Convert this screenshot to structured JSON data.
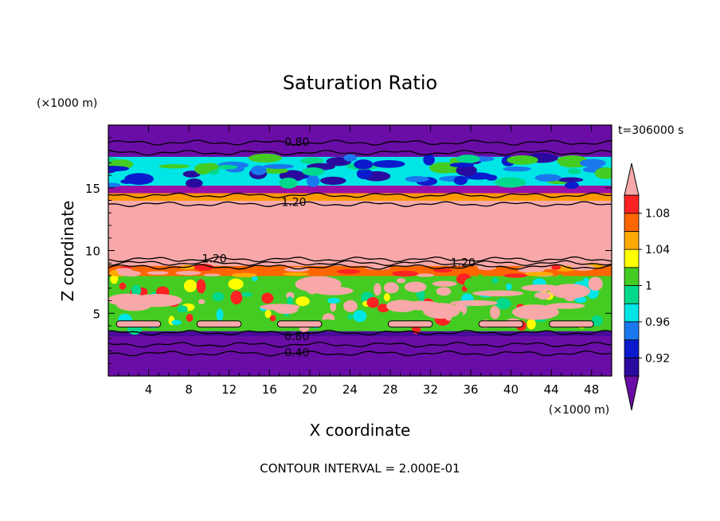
{
  "chart_data": {
    "type": "heatmap",
    "title": "Saturation Ratio",
    "xlabel": "X coordinate",
    "ylabel": "Z coordinate",
    "x_unit": "(×1000 m)",
    "y_unit": "(×1000 m)",
    "time_label": "t=306000 s",
    "footer": "CONTOUR INTERVAL = 2.000E-01",
    "xlim": [
      0,
      50
    ],
    "ylim": [
      0,
      20
    ],
    "x_ticks": [
      4,
      8,
      12,
      16,
      20,
      24,
      28,
      32,
      36,
      40,
      44,
      48
    ],
    "y_ticks": [
      5,
      10,
      15
    ],
    "contour_labels": [
      {
        "text": "0.80",
        "x": 17.5,
        "z": 18.6
      },
      {
        "text": "1.20",
        "x": 17.2,
        "z": 13.8
      },
      {
        "text": "1.20",
        "x": 9.3,
        "z": 9.3
      },
      {
        "text": "1.20",
        "x": 34.0,
        "z": 9.0
      },
      {
        "text": "0.80",
        "x": 17.5,
        "z": 3.1
      },
      {
        "text": "0.40",
        "x": 17.5,
        "z": 1.8
      }
    ],
    "colorbar": {
      "levels": [
        0.92,
        0.96,
        1.0,
        1.04,
        1.08
      ],
      "tick_labels": [
        "0.92",
        "0.96",
        "1",
        "1.04",
        "1.08"
      ],
      "colors": [
        "#6a0da6",
        "#2a0a9e",
        "#0a1acc",
        "#1a78ee",
        "#00e5e5",
        "#00d98c",
        "#44cc22",
        "#ffff00",
        "#ffaa00",
        "#ff6600",
        "#ff2222",
        "#f8a8a8"
      ]
    },
    "bands": [
      {
        "z0": 0,
        "z1": 3.2,
        "color": "#6a0da6"
      },
      {
        "z0": 3.2,
        "z1": 3.6,
        "color": "#4a0a9a"
      },
      {
        "z0": 3.6,
        "z1": 8.0,
        "color": "#44cc22"
      },
      {
        "z0": 8.0,
        "z1": 8.8,
        "color": "#ff6600"
      },
      {
        "z0": 8.8,
        "z1": 14.0,
        "color": "#f8a8a8"
      },
      {
        "z0": 14.0,
        "z1": 14.6,
        "color": "#ff9900"
      },
      {
        "z0": 14.6,
        "z1": 15.2,
        "color": "#9a0ea6"
      },
      {
        "z0": 15.2,
        "z1": 17.5,
        "color": "#00e5e5"
      },
      {
        "z0": 17.5,
        "z1": 20.0,
        "color": "#6a0da6"
      }
    ]
  }
}
